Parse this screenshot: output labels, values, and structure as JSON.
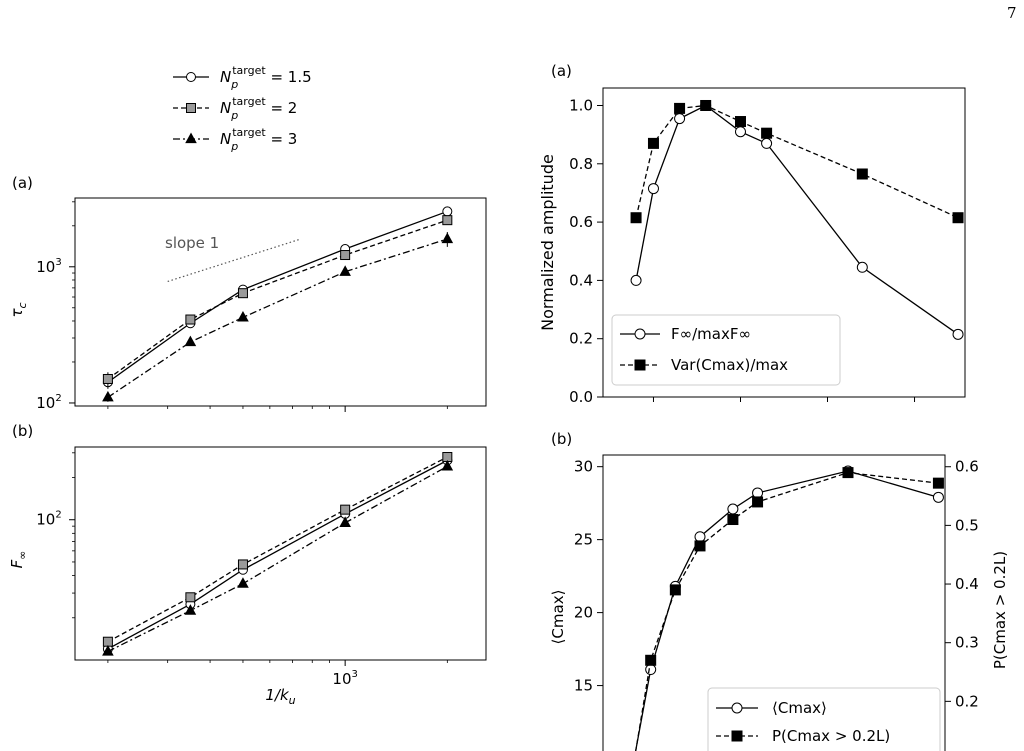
{
  "page": {
    "number": "7"
  },
  "chart_data": [
    {
      "type": "line",
      "panel_label": "(a)",
      "xlabel_main": "1/k",
      "xlabel_sub": "u",
      "ylabel_main": "τ",
      "ylabel_sub": "c",
      "xscale": "log",
      "yscale": "log",
      "xlim": [
        160,
        2600
      ],
      "ylim": [
        95,
        3200
      ],
      "yticks": [
        {
          "v": 100,
          "base": "10",
          "exp": "2"
        },
        {
          "v": 1000,
          "base": "10",
          "exp": "3"
        }
      ],
      "annotation": {
        "text": "slope 1",
        "line_x": [
          300,
          740
        ],
        "line_y": [
          780,
          1600
        ]
      },
      "series": [
        {
          "key": "n15",
          "x": [
            200,
            350,
            500,
            1000,
            2000
          ],
          "y": [
            142,
            385,
            680,
            1350,
            2550
          ],
          "err": [
            15,
            20,
            30,
            60,
            120
          ]
        },
        {
          "key": "n2",
          "x": [
            200,
            350,
            500,
            1000,
            2000
          ],
          "y": [
            150,
            410,
            640,
            1220,
            2200
          ],
          "err": [
            18,
            25,
            30,
            60,
            150
          ]
        },
        {
          "key": "n3",
          "x": [
            200,
            350,
            500,
            1000,
            2000
          ],
          "y": [
            110,
            280,
            425,
            920,
            1600
          ],
          "err": [
            8,
            15,
            25,
            45,
            200
          ]
        }
      ],
      "legend": [
        {
          "key": "n15",
          "prefix": "N",
          "sub": "p",
          "sup": "target",
          "value": " = 1.5"
        },
        {
          "key": "n2",
          "prefix": "N",
          "sub": "p",
          "sup": "target",
          "value": " = 2"
        },
        {
          "key": "n3",
          "prefix": "N",
          "sub": "p",
          "sup": "target",
          "value": " = 3"
        }
      ]
    },
    {
      "type": "line",
      "panel_label": "(b)",
      "xlabel_main": "1/k",
      "xlabel_sub": "u",
      "ylabel_main": "F",
      "ylabel_sub": "∞",
      "xscale": "log",
      "yscale": "log",
      "xlim": [
        160,
        2600
      ],
      "ylim": [
        10,
        330
      ],
      "xticks": [
        {
          "v": 1000,
          "base": "10",
          "exp": "3"
        }
      ],
      "yticks": [
        {
          "v": 100,
          "base": "10",
          "exp": "2"
        }
      ],
      "series": [
        {
          "key": "n15",
          "x": [
            200,
            350,
            500,
            1000,
            2000
          ],
          "y": [
            12,
            25,
            44,
            110,
            265
          ]
        },
        {
          "key": "n2",
          "x": [
            200,
            350,
            500,
            1000,
            2000
          ],
          "y": [
            13.5,
            28,
            48,
            118,
            280
          ]
        },
        {
          "key": "n3",
          "x": [
            200,
            350,
            500,
            1000,
            2000
          ],
          "y": [
            11.5,
            22.5,
            35,
            95,
            240
          ]
        }
      ]
    },
    {
      "type": "line",
      "panel_label": "(a)",
      "ylabel": "Normalized amplitude",
      "xlim": [
        0,
        1
      ],
      "ylim": [
        0,
        1.06
      ],
      "yticks": [
        "0.0",
        "0.2",
        "0.4",
        "0.6",
        "0.8",
        "1.0"
      ],
      "series": [
        {
          "key": "finf",
          "x": [
            0.075,
            0.125,
            0.2,
            0.275,
            0.375,
            0.45,
            0.725,
            1.0
          ],
          "y": [
            0.4,
            0.715,
            0.955,
            1.0,
            0.91,
            0.87,
            0.445,
            0.215
          ]
        },
        {
          "key": "var",
          "x": [
            0.075,
            0.125,
            0.2,
            0.275,
            0.375,
            0.45,
            0.725,
            1.0
          ],
          "y": [
            0.615,
            0.87,
            0.99,
            1.0,
            0.945,
            0.905,
            0.765,
            0.615
          ]
        }
      ],
      "legend": [
        {
          "key": "finf",
          "text": "F∞/maxF∞"
        },
        {
          "key": "var",
          "text": "Var(Cmax)/max"
        }
      ]
    },
    {
      "type": "line",
      "panel_label": "(b)",
      "ylabel_left": "⟨Cmax⟩",
      "ylabel_right": "P(Cmax > 0.2L)",
      "xlim": [
        0,
        1
      ],
      "ylim_left": [
        9.9,
        30.8
      ],
      "ylim_right": [
        0.1,
        0.62
      ],
      "yticks_left": [
        "15",
        "20",
        "25",
        "30"
      ],
      "yticks_right": [
        "0.2",
        "0.3",
        "0.4",
        "0.5",
        "0.6"
      ],
      "series": [
        {
          "key": "cmax",
          "axis": "left",
          "x": [
            0.075,
            0.125,
            0.2,
            0.275,
            0.375,
            0.45,
            0.725,
            1.0
          ],
          "y": [
            10.0,
            16.1,
            21.8,
            25.2,
            27.1,
            28.2,
            29.7,
            27.9
          ]
        },
        {
          "key": "prob",
          "axis": "right",
          "x": [
            0.075,
            0.125,
            0.2,
            0.275,
            0.375,
            0.45,
            0.725,
            1.0
          ],
          "y": [
            0.1,
            0.27,
            0.39,
            0.465,
            0.51,
            0.54,
            0.59,
            0.572
          ]
        }
      ],
      "legend": [
        {
          "key": "cmax",
          "text": "⟨Cmax⟩"
        },
        {
          "key": "prob",
          "text": "P(Cmax > 0.2L)"
        }
      ]
    }
  ]
}
